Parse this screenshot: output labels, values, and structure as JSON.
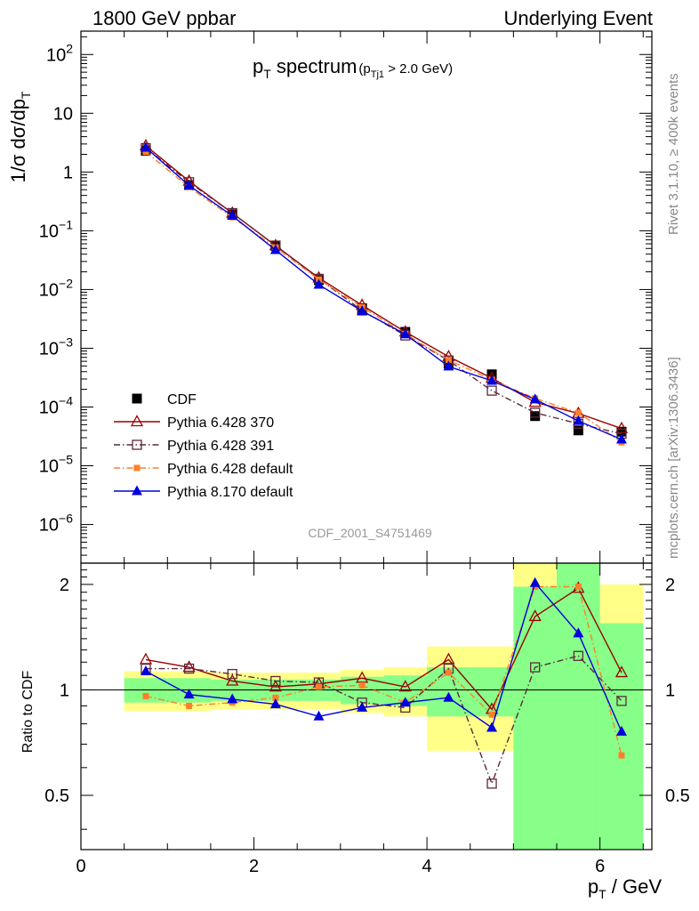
{
  "header": {
    "left": "1800 GeV ppbar",
    "right": "Underlying Event"
  },
  "side_labels": {
    "rivet": "Rivet 3.1.10, ≥ 400k events",
    "mcplots": "mcplots.cern.ch [arXiv:1306.3436]"
  },
  "plot_title": {
    "main": "p",
    "main_sub": "T",
    "main_rest": " spectrum",
    "cut_open": "(p",
    "cut_sub": "Tj1",
    "cut_rest": " > 2.0 GeV)"
  },
  "analysis_id": "CDF_2001_S4751469",
  "axes": {
    "main_ylabel": "1/σ dσ/dp",
    "main_ylabel_sub": "T",
    "ratio_ylabel": "Ratio to CDF",
    "xlabel": "p",
    "xlabel_sub": "T",
    "xlabel_rest": " / GeV",
    "x_ticks": [
      "0",
      "2",
      "4",
      "6"
    ],
    "main_y_ticks": [
      {
        "base": "10",
        "exp": "2"
      },
      {
        "base": "10",
        "exp": ""
      },
      {
        "base": "1",
        "exp": ""
      },
      {
        "base": "10",
        "exp": "−1"
      },
      {
        "base": "10",
        "exp": "−2"
      },
      {
        "base": "10",
        "exp": "−3"
      },
      {
        "base": "10",
        "exp": "−4"
      },
      {
        "base": "10",
        "exp": "−5"
      },
      {
        "base": "10",
        "exp": "−6"
      }
    ],
    "ratio_y_ticks": [
      "2",
      "1",
      "0.5"
    ]
  },
  "colors": {
    "cdf": "#000000",
    "p370": "#990000",
    "p391": "#5c2a3a",
    "pdef": "#ff7f2a",
    "p8": "#0000dd",
    "band_inner": "#88ff88",
    "band_outer": "#ffff88"
  },
  "chart_data": [
    {
      "type": "line",
      "panel": "main",
      "title": "p_T spectrum (p_Tj1 > 2.0 GeV)",
      "xlabel": "p_T / GeV",
      "ylabel": "1/σ dσ/dp_T",
      "xlim": [
        0,
        6.6
      ],
      "ylim": [
        2.2e-07,
        250
      ],
      "yscale": "log",
      "x": [
        0.75,
        1.25,
        1.75,
        2.25,
        2.75,
        3.25,
        3.75,
        4.25,
        4.75,
        5.25,
        5.75,
        6.25
      ],
      "legend_position": "lower-left",
      "series": [
        {
          "name": "CDF",
          "key": "cdf",
          "marker": "square-filled",
          "line": "none",
          "values": [
            2.3,
            0.6,
            0.19,
            0.055,
            0.0145,
            0.0048,
            0.0019,
            0.00055,
            0.00036,
            7e-05,
            4e-05,
            3.8e-05
          ]
        },
        {
          "name": "Pythia 6.428 370",
          "key": "p370",
          "marker": "triangle-open",
          "line": "solid",
          "values": [
            2.8,
            0.7,
            0.2,
            0.056,
            0.0158,
            0.0054,
            0.0019,
            0.00072,
            0.00031,
            0.00012,
            7.8e-05,
            4.3e-05
          ]
        },
        {
          "name": "Pythia 6.428 391",
          "key": "p391",
          "marker": "square-open",
          "line": "dashdot",
          "values": [
            2.55,
            0.67,
            0.2,
            0.056,
            0.0152,
            0.0044,
            0.00165,
            0.00062,
            0.00019,
            8e-05,
            5.2e-05,
            3.5e-05
          ]
        },
        {
          "name": "Pythia 6.428 default",
          "key": "pdef",
          "marker": "square-filled-small",
          "line": "dashdot",
          "values": [
            2.2,
            0.55,
            0.17,
            0.052,
            0.0148,
            0.005,
            0.00175,
            0.00063,
            0.00029,
            0.00014,
            8e-05,
            2.5e-05
          ]
        },
        {
          "name": "Pythia 8.170 default",
          "key": "p8",
          "marker": "triangle-filled",
          "line": "solid",
          "values": [
            2.6,
            0.59,
            0.18,
            0.047,
            0.0121,
            0.0043,
            0.00173,
            0.00049,
            0.00028,
            0.000135,
            5.8e-05,
            2.8e-05
          ]
        }
      ]
    },
    {
      "type": "line",
      "panel": "ratio",
      "ylabel": "Ratio to CDF",
      "xlabel": "p_T / GeV",
      "xlim": [
        0,
        6.6
      ],
      "ylim": [
        0.35,
        2.3
      ],
      "yscale": "log",
      "reference_line": 1,
      "x": [
        0.75,
        1.25,
        1.75,
        2.25,
        2.75,
        3.25,
        3.75,
        4.25,
        4.75,
        5.25,
        5.75,
        6.25
      ],
      "bands": {
        "x_edges": [
          0.5,
          1.0,
          1.5,
          2.0,
          2.5,
          3.0,
          3.5,
          4.0,
          4.5,
          5.0,
          5.5,
          6.0,
          6.5
        ],
        "inner_low": [
          0.92,
          0.92,
          0.93,
          0.93,
          0.93,
          0.91,
          0.9,
          0.84,
          0.84,
          0.35,
          0.35,
          0.35
        ],
        "inner_high": [
          1.08,
          1.08,
          1.07,
          1.07,
          1.07,
          1.09,
          1.1,
          1.16,
          1.16,
          1.97,
          2.3,
          1.55
        ],
        "outer_low": [
          0.87,
          0.87,
          0.88,
          0.88,
          0.88,
          0.86,
          0.84,
          0.67,
          0.67,
          0.35,
          0.35,
          0.35
        ],
        "outer_high": [
          1.13,
          1.13,
          1.12,
          1.12,
          1.12,
          1.14,
          1.16,
          1.33,
          1.33,
          2.3,
          2.3,
          2.0
        ]
      },
      "series": [
        {
          "name": "Pythia 6.428 370",
          "key": "p370",
          "values": [
            1.22,
            1.16,
            1.06,
            1.02,
            1.04,
            1.08,
            1.02,
            1.22,
            0.88,
            1.62,
            1.95,
            1.12
          ]
        },
        {
          "name": "Pythia 6.428 391",
          "key": "p391",
          "values": [
            1.15,
            1.15,
            1.11,
            1.06,
            1.05,
            0.92,
            0.89,
            1.15,
            0.54,
            1.16,
            1.25,
            0.93
          ]
        },
        {
          "name": "Pythia 6.428 default",
          "key": "pdef",
          "values": [
            0.96,
            0.9,
            0.92,
            0.95,
            1.02,
            1.03,
            0.92,
            1.12,
            0.85,
            1.97,
            1.97,
            0.65
          ]
        },
        {
          "name": "Pythia 8.170 default",
          "key": "p8",
          "values": [
            1.13,
            0.97,
            0.94,
            0.91,
            0.84,
            0.89,
            0.92,
            0.95,
            0.78,
            2.02,
            1.45,
            0.76
          ]
        }
      ]
    }
  ]
}
